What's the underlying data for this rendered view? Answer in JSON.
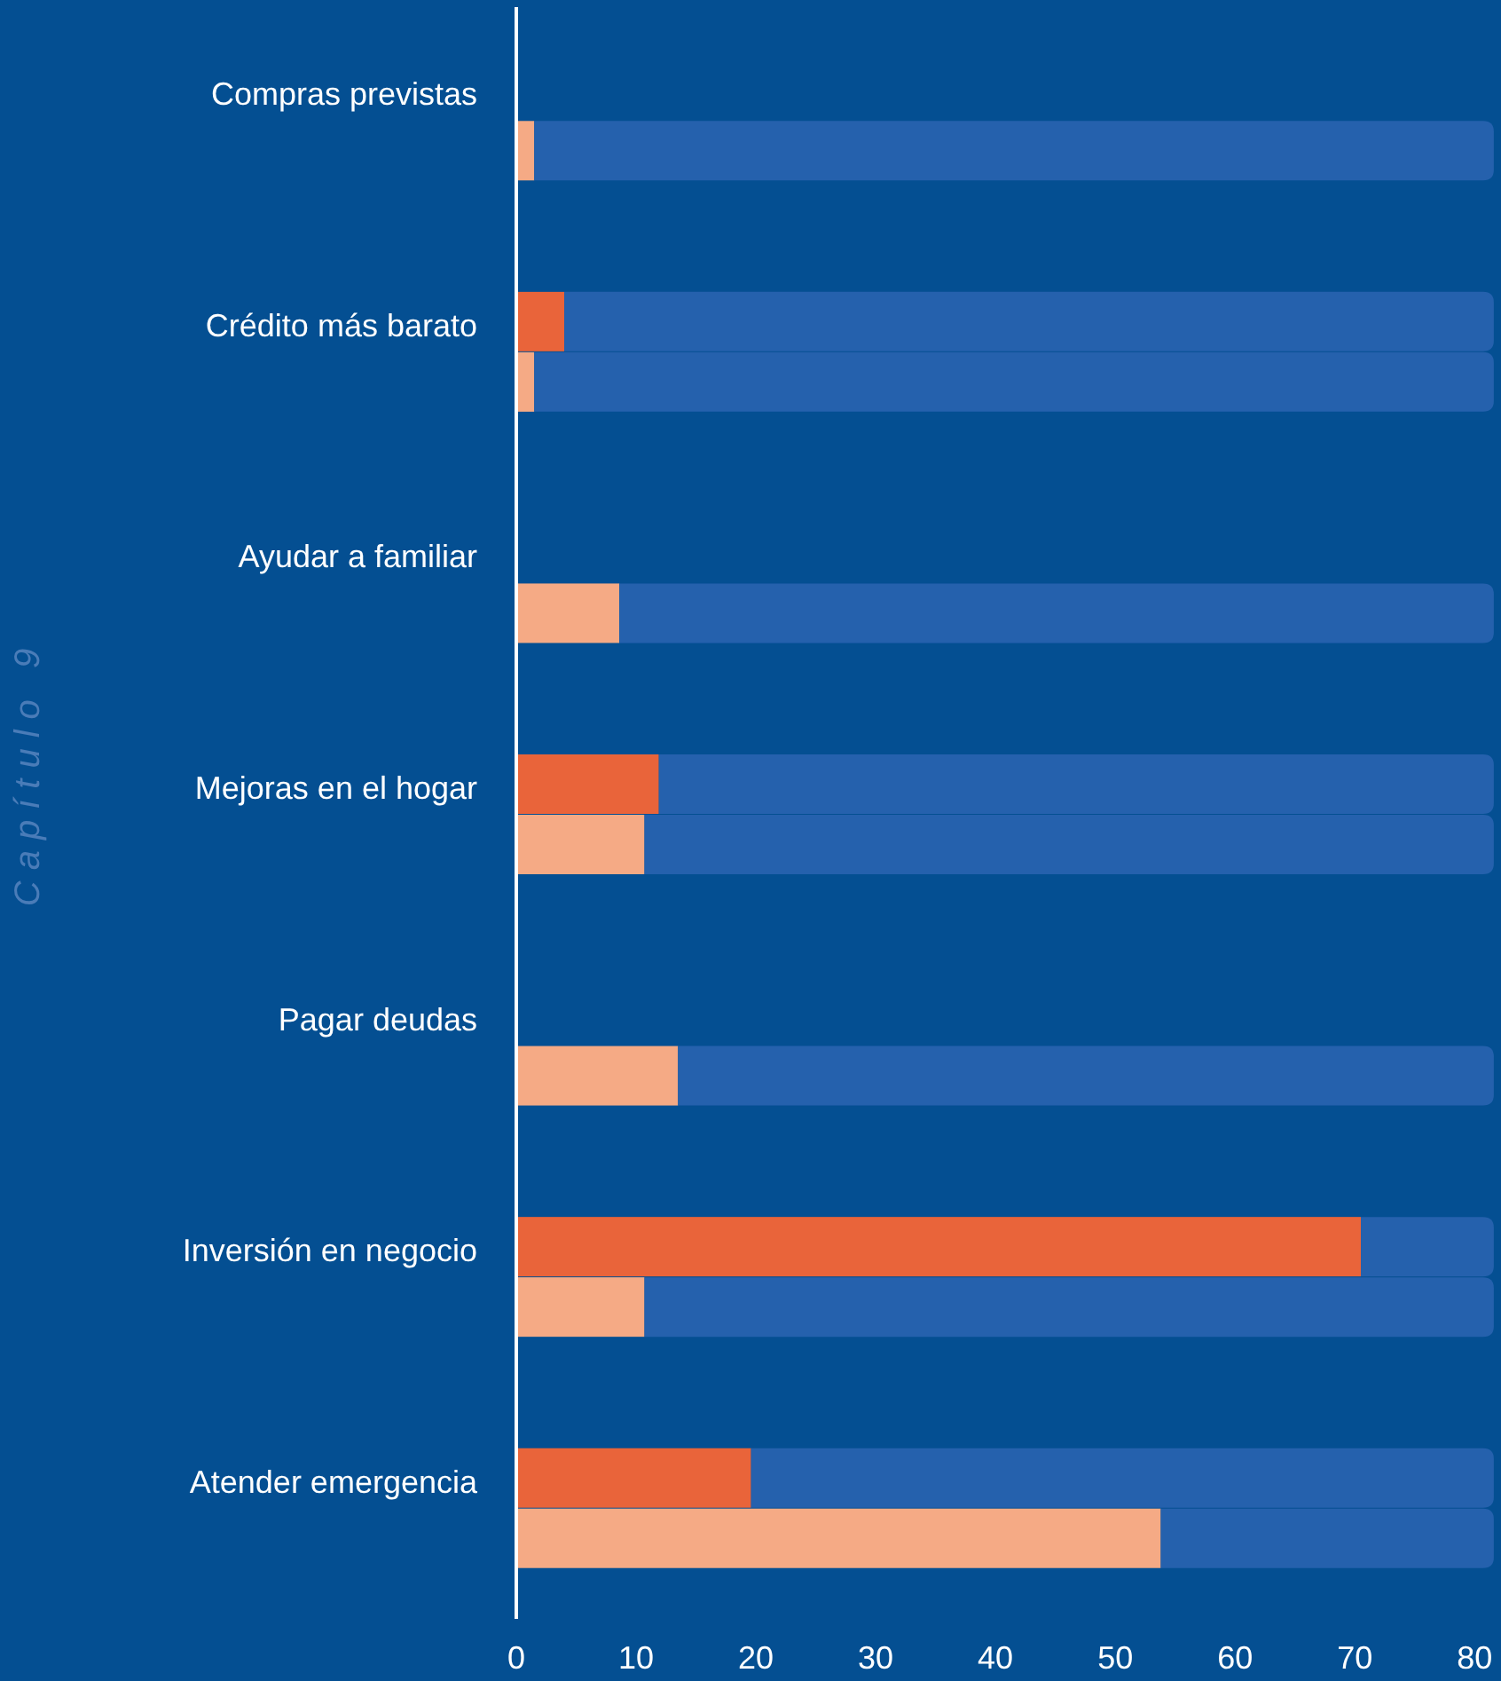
{
  "chart_data": {
    "type": "bar",
    "orientation": "horizontal",
    "stacked": true,
    "categories": [
      "Compras previstas",
      null,
      "Crédito más barato",
      null,
      "Ayudar a familiar",
      null,
      "Mejoras en el hogar",
      null,
      "Pagar deudas",
      null,
      "Inversión en negocio",
      null,
      "Atender emergencia",
      null
    ],
    "series": [
      {
        "colors": [
          null,
          "#f5aa85",
          "#e9643a",
          "#f5aa85",
          null,
          "#f5aa85",
          "#e9643a",
          "#f5aa85",
          null,
          "#f5aa85",
          "#e9643a",
          "#f5aa85",
          "#e9643a",
          "#f5aa85"
        ],
        "values": [
          null,
          1.5,
          4,
          1.5,
          null,
          8.6,
          11.9,
          10.7,
          null,
          13.5,
          70.5,
          10.7,
          19.6,
          53.8
        ]
      },
      {
        "color": "#2561ad",
        "values": [
          null,
          80.1,
          77.6,
          80.1,
          null,
          73,
          69.7,
          70.9,
          null,
          68.1,
          11.1,
          70.9,
          62,
          27.8
        ]
      }
    ],
    "xlim": [
      0,
      82.2
    ],
    "xticks": [
      0,
      10,
      20,
      30,
      40,
      50,
      60,
      70,
      80
    ],
    "grid": false,
    "annotations": [
      "Capítulo 9"
    ]
  }
}
